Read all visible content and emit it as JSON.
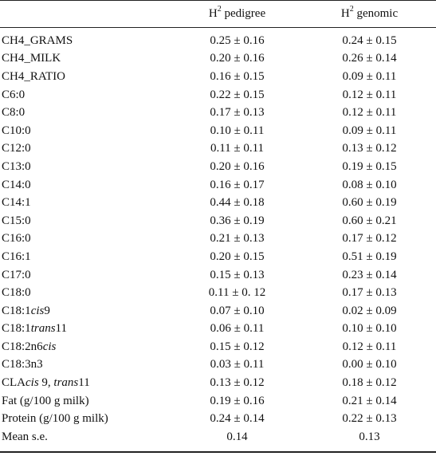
{
  "header": {
    "col1": "",
    "col2_base": "H",
    "col2_sup": "2",
    "col2_rest": " pedigree",
    "col3_base": "H",
    "col3_sup": "2",
    "col3_rest": " genomic"
  },
  "rows": [
    {
      "name": "CH4_GRAMS",
      "pedigree": "0.25 ± 0.16",
      "genomic": "0.24 ± 0.15"
    },
    {
      "name": "CH4_MILK",
      "pedigree": "0.20 ± 0.16",
      "genomic": "0.26 ± 0.14"
    },
    {
      "name": "CH4_RATIO",
      "pedigree": "0.16 ± 0.15",
      "genomic": "0.09 ± 0.11"
    },
    {
      "name": "C6:0",
      "pedigree": "0.22 ± 0.15",
      "genomic": "0.12 ± 0.11"
    },
    {
      "name": "C8:0",
      "pedigree": "0.17 ± 0.13",
      "genomic": "0.12 ± 0.11"
    },
    {
      "name": "C10:0",
      "pedigree": "0.10 ± 0.11",
      "genomic": "0.09 ± 0.11"
    },
    {
      "name": "C12:0",
      "pedigree": "0.11 ± 0.11",
      "genomic": "0.13 ± 0.12"
    },
    {
      "name": "C13:0",
      "pedigree": "0.20 ± 0.16",
      "genomic": "0.19 ± 0.15"
    },
    {
      "name": "C14:0",
      "pedigree": "0.16 ± 0.17",
      "genomic": "0.08 ± 0.10"
    },
    {
      "name": "C14:1",
      "pedigree": "0.44 ± 0.18",
      "genomic": "0.60 ± 0.19"
    },
    {
      "name": "C15:0",
      "pedigree": "0.36 ± 0.19",
      "genomic": "0.60 ± 0.21"
    },
    {
      "name": "C16:0",
      "pedigree": "0.21 ± 0.13",
      "genomic": "0.17 ± 0.12"
    },
    {
      "name": "C16:1",
      "pedigree": "0.20 ± 0.15",
      "genomic": "0.51 ± 0.19"
    },
    {
      "name": "C17:0",
      "pedigree": "0.15 ± 0.13",
      "genomic": "0.23 ± 0.14"
    },
    {
      "name": "C18:0",
      "pedigree": "0.11 ± 0. 12",
      "genomic": "0.17 ± 0.13"
    },
    {
      "name_pre": "C18:1",
      "name_it": "cis",
      "name_post": "9",
      "pedigree": "0.07 ± 0.10",
      "genomic": "0.02 ± 0.09"
    },
    {
      "name_pre": "C18:1",
      "name_it": "trans",
      "name_post": "11",
      "pedigree": "0.06 ± 0.11",
      "genomic": "0.10 ± 0.10"
    },
    {
      "name_pre": "C18:2n6",
      "name_it": "cis",
      "name_post": "",
      "pedigree": "0.15 ± 0.12",
      "genomic": "0.12 ± 0.11"
    },
    {
      "name": "C18:3n3",
      "pedigree": "0.03 ± 0.11",
      "genomic": "0.00 ± 0.10"
    },
    {
      "name_pre": "CLA",
      "name_it": "cis",
      "name_post": " 9, ",
      "name_it2": "trans",
      "name_post2": "11",
      "pedigree": "0.13 ± 0.12",
      "genomic": "0.18 ± 0.12"
    },
    {
      "name": "Fat (g/100 g milk)",
      "pedigree": "0.19 ± 0.16",
      "genomic": "0.21 ± 0.14"
    },
    {
      "name": "Protein (g/100 g milk)",
      "pedigree": "0.24 ± 0.14",
      "genomic": "0.22 ± 0.13"
    },
    {
      "name": "Mean s.e.",
      "pedigree": "0.14",
      "genomic": "0.13"
    }
  ]
}
